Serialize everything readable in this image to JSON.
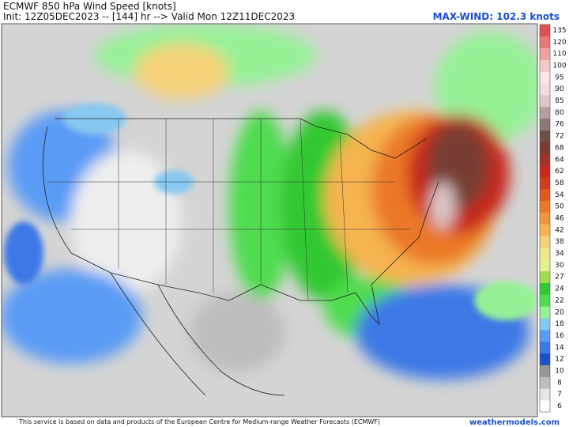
{
  "header": {
    "title": "ECMWF 850 hPa Wind Speed [knots]",
    "subtitle": "Init: 12Z05DEC2023 -- [144] hr --> Valid Mon 12Z11DEC2023",
    "max_wind": "MAX-WIND: 102.3 knots"
  },
  "colorbar": {
    "levels": [
      6,
      7,
      8,
      10,
      12,
      14,
      16,
      18,
      20,
      22,
      24,
      27,
      30,
      34,
      38,
      42,
      46,
      50,
      54,
      58,
      62,
      64,
      68,
      72,
      76,
      80,
      85,
      90,
      95,
      100,
      110,
      120,
      135
    ],
    "colors": [
      "#ffffff",
      "#e6e6e6",
      "#bdbdbd",
      "#969696",
      "#1e50c8",
      "#3c78e6",
      "#5a9bf5",
      "#87c8f0",
      "#96f096",
      "#50dc50",
      "#32c832",
      "#a0dc50",
      "#e6f08c",
      "#f0e68c",
      "#f5d278",
      "#f5b450",
      "#f0963c",
      "#eb7828",
      "#e05a1e",
      "#d23c1e",
      "#c8281e",
      "#a03228",
      "#783c32",
      "#6e5046",
      "#8c7878",
      "#b4a0a0",
      "#dcc8c8",
      "#f0dcdc",
      "#fae6e6",
      "#f5c8c8",
      "#f0a0a0",
      "#e87878",
      "#e05050"
    ]
  },
  "footer": {
    "credit": "This service is based on data and products of the European Centre for Medium-range Weather Forecasts (ECMWF)",
    "site": "weathermodels.com"
  }
}
